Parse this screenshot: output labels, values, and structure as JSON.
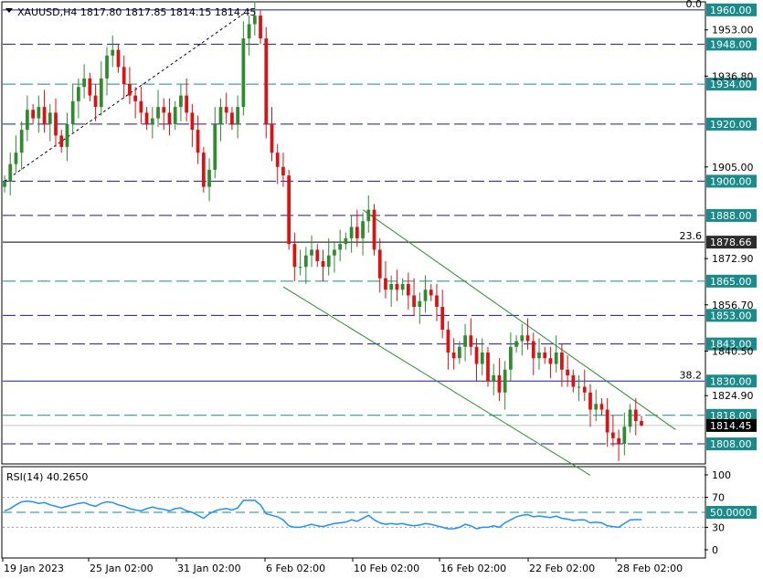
{
  "header": {
    "symbol_line": "XAUUSD,H4  1817.80 1817.85 1814.15 1814.45"
  },
  "rsi_panel": {
    "label": "RSI(14) 40.2650",
    "levels": [
      100,
      70,
      30,
      0
    ],
    "marked_value": "50.0000"
  },
  "colors": {
    "bull": "#2e8b2e",
    "bear": "#dd1111",
    "level_tag": "#1a8a8a",
    "current_tag": "#000000",
    "rsi_line": "#1e90ff",
    "channel": "#2e8b2e",
    "level_blue": "#1a1a8c",
    "level_teal": "#1a8a8a"
  },
  "chart_data": {
    "type": "candlestick",
    "symbol": "XAUUSD",
    "timeframe": "H4",
    "last_bar": {
      "open": 1817.8,
      "high": 1817.85,
      "low": 1814.15,
      "close": 1814.45
    },
    "price_axis_ticks": [
      "1953.00",
      "1936.80",
      "1905.00",
      "1872.90",
      "1856.70",
      "1840.50",
      "1824.90"
    ],
    "time_axis_labels": [
      "19 Jan 2023",
      "25 Jan 02:00",
      "31 Jan 02:00",
      "6 Feb 02:00",
      "10 Feb 02:00",
      "16 Feb 02:00",
      "22 Feb 02:00",
      "28 Feb 02:00"
    ],
    "level_lines": [
      {
        "price": 1960.0,
        "label": "1960.00",
        "style": "solid",
        "color": "blue"
      },
      {
        "price": 1948.0,
        "label": "1948.00",
        "style": "dashed",
        "color": "blue"
      },
      {
        "price": 1934.0,
        "label": "1934.00",
        "style": "dashed",
        "color": "teal"
      },
      {
        "price": 1920.0,
        "label": "1920.00",
        "style": "dashed",
        "color": "blue"
      },
      {
        "price": 1900.0,
        "label": "1900.00",
        "style": "dashed",
        "color": "blue"
      },
      {
        "price": 1888.0,
        "label": "1888.00",
        "style": "dashed",
        "color": "blue"
      },
      {
        "price": 1878.66,
        "label": "1878.66",
        "style": "solid",
        "color": "black"
      },
      {
        "price": 1865.0,
        "label": "1865.00",
        "style": "dashed",
        "color": "teal"
      },
      {
        "price": 1853.0,
        "label": "1853.00",
        "style": "dashed",
        "color": "blue"
      },
      {
        "price": 1843.0,
        "label": "1843.00",
        "style": "dashed",
        "color": "blue"
      },
      {
        "price": 1830.0,
        "label": "1830.00",
        "style": "solid",
        "color": "blue"
      },
      {
        "price": 1818.0,
        "label": "1818.00",
        "style": "dashed",
        "color": "teal"
      },
      {
        "price": 1808.0,
        "label": "1808.00",
        "style": "dashed",
        "color": "blue"
      }
    ],
    "current_price_label": "1814.45",
    "fib_labels": [
      {
        "text": "0.0",
        "price": 1960.0
      },
      {
        "text": "23.6",
        "price": 1878.66
      },
      {
        "text": "38.2",
        "price": 1830.0
      }
    ],
    "closes": [
      1900,
      1906,
      1910,
      1918,
      1925,
      1922,
      1926,
      1920,
      1924,
      1916,
      1912,
      1920,
      1928,
      1933,
      1936,
      1930,
      1926,
      1936,
      1944,
      1946,
      1940,
      1934,
      1930,
      1928,
      1924,
      1920,
      1922,
      1926,
      1924,
      1920,
      1926,
      1930,
      1924,
      1918,
      1910,
      1898,
      1904,
      1920,
      1926,
      1924,
      1920,
      1926,
      1950,
      1955,
      1958,
      1950,
      1920,
      1910,
      1905,
      1902,
      1878,
      1870,
      1870,
      1874,
      1876,
      1872,
      1870,
      1874,
      1876,
      1878,
      1880,
      1884,
      1880,
      1886,
      1890,
      1876,
      1866,
      1862,
      1864,
      1862,
      1864,
      1860,
      1856,
      1858,
      1862,
      1860,
      1856,
      1848,
      1840,
      1838,
      1842,
      1846,
      1842,
      1836,
      1840,
      1830,
      1832,
      1826,
      1834,
      1842,
      1844,
      1846,
      1844,
      1838,
      1840,
      1838,
      1836,
      1840,
      1834,
      1832,
      1828,
      1828,
      1826,
      1820,
      1822,
      1820,
      1812,
      1810,
      1808,
      1814,
      1820,
      1816,
      1814.45
    ],
    "channel_upper": {
      "from_bar": 63,
      "from_price": 1890,
      "to_bar": 118,
      "to_price": 1813
    },
    "channel_lower": {
      "from_bar": 49,
      "from_price": 1863,
      "to_bar": 103,
      "to_price": 1797
    },
    "trendline": {
      "from_bar": 0,
      "from_price": 1900,
      "to_bar": 43,
      "to_price": 1960
    },
    "rsi": {
      "label": "RSI(14)",
      "last": 40.265,
      "ylim": [
        0,
        100
      ],
      "levels": [
        70,
        50,
        30
      ],
      "values": [
        52,
        55,
        60,
        64,
        65,
        64,
        62,
        63,
        60,
        58,
        56,
        58,
        60,
        62,
        63,
        60,
        58,
        62,
        64,
        63,
        60,
        58,
        55,
        53,
        52,
        55,
        57,
        55,
        54,
        52,
        55,
        56,
        52,
        50,
        46,
        42,
        48,
        52,
        54,
        55,
        53,
        56,
        66,
        66,
        66,
        60,
        48,
        46,
        44,
        40,
        32,
        30,
        30,
        32,
        34,
        32,
        31,
        33,
        35,
        36,
        37,
        40,
        38,
        42,
        46,
        40,
        36,
        34,
        35,
        34,
        35,
        33,
        32,
        33,
        35,
        34,
        32,
        30,
        28,
        28,
        30,
        34,
        32,
        28,
        30,
        30,
        32,
        30,
        36,
        40,
        44,
        46,
        47,
        44,
        45,
        44,
        43,
        45,
        42,
        41,
        39,
        40,
        40,
        36,
        37,
        36,
        32,
        31,
        30,
        35,
        40,
        40.3,
        40.265
      ]
    }
  }
}
